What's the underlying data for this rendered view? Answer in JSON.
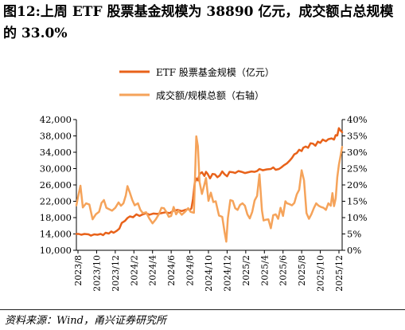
{
  "title": "图12:上周 ETF 股票基金规模为 38890 亿元，成交额占总规模的 33.0%",
  "source": "资料来源：Wind，甬兴证券研究所",
  "colors": {
    "primary": "#E8621A",
    "secondary": "#F5A35A",
    "axis": "#000000"
  },
  "chart_data": {
    "type": "line",
    "legend_position": "top-center",
    "grid": false,
    "left_axis": {
      "min": 10000,
      "max": 42000,
      "ticks": [
        "10,000",
        "14,000",
        "18,000",
        "22,000",
        "26,000",
        "30,000",
        "34,000",
        "38,000",
        "42,000"
      ]
    },
    "right_axis": {
      "min": 0,
      "max": 40,
      "unit": "%",
      "ticks": [
        "0%",
        "5%",
        "10%",
        "15%",
        "20%",
        "25%",
        "30%",
        "35%",
        "40%"
      ]
    },
    "x_ticks": [
      "2023/8",
      "2023/10",
      "2023/12",
      "2024/2",
      "2024/4",
      "2024/6",
      "2024/8",
      "2024/10",
      "2024/12",
      "2025/2",
      "2025/4",
      "2025/6",
      "2025/8",
      "2025/10",
      "2025/12"
    ],
    "series": [
      {
        "name": "ETF 股票基金规模（亿元）",
        "axis": "left",
        "color": "#E8621A",
        "width": 2.5,
        "points": [
          [
            0,
            14000
          ],
          [
            0.3,
            14000
          ],
          [
            0.6,
            13800
          ],
          [
            1,
            14000
          ],
          [
            1.5,
            13900
          ],
          [
            1.8,
            13600
          ],
          [
            2.2,
            13900
          ],
          [
            2.6,
            13800
          ],
          [
            3,
            14000
          ],
          [
            3.3,
            13700
          ],
          [
            3.6,
            14300
          ],
          [
            4,
            14100
          ],
          [
            4.3,
            14600
          ],
          [
            4.6,
            14300
          ],
          [
            5,
            14800
          ],
          [
            5.3,
            15300
          ],
          [
            5.6,
            16700
          ],
          [
            6,
            17200
          ],
          [
            6.3,
            17900
          ],
          [
            6.6,
            18300
          ],
          [
            7,
            18100
          ],
          [
            7.4,
            18800
          ],
          [
            7.8,
            18400
          ],
          [
            8.2,
            18800
          ],
          [
            8.6,
            19100
          ],
          [
            9,
            18700
          ],
          [
            9.5,
            19000
          ],
          [
            10,
            18900
          ],
          [
            10.5,
            19100
          ],
          [
            11,
            19300
          ],
          [
            11.5,
            19100
          ],
          [
            12,
            19700
          ],
          [
            12.5,
            19900
          ],
          [
            13,
            19600
          ],
          [
            13.6,
            20000
          ],
          [
            13.8,
            20100
          ],
          [
            14,
            19800
          ],
          [
            14.2,
            20300
          ],
          [
            14.4,
            22600
          ],
          [
            14.6,
            26400
          ],
          [
            14.8,
            27600
          ],
          [
            15,
            27100
          ],
          [
            15.2,
            28700
          ],
          [
            15.5,
            29100
          ],
          [
            15.8,
            28200
          ],
          [
            16,
            29200
          ],
          [
            16.2,
            28700
          ],
          [
            16.5,
            27600
          ],
          [
            16.8,
            28700
          ],
          [
            17.1,
            28600
          ],
          [
            17.4,
            27900
          ],
          [
            17.7,
            28300
          ],
          [
            18,
            29300
          ],
          [
            18.3,
            28600
          ],
          [
            18.6,
            28100
          ],
          [
            18.9,
            29200
          ],
          [
            19.3,
            29100
          ],
          [
            19.6,
            28900
          ],
          [
            20,
            29400
          ],
          [
            20.4,
            29200
          ],
          [
            20.8,
            28900
          ],
          [
            21.2,
            29100
          ],
          [
            21.6,
            29300
          ],
          [
            22,
            29200
          ],
          [
            22.3,
            29400
          ],
          [
            22.6,
            29900
          ],
          [
            23,
            29600
          ],
          [
            23.5,
            29800
          ],
          [
            24,
            29900
          ],
          [
            24.3,
            30300
          ],
          [
            24.6,
            29700
          ],
          [
            25,
            29900
          ],
          [
            25.3,
            30300
          ],
          [
            25.6,
            30800
          ],
          [
            26,
            31300
          ],
          [
            26.3,
            31900
          ],
          [
            26.6,
            32600
          ],
          [
            26.9,
            33500
          ],
          [
            27.2,
            33800
          ],
          [
            27.5,
            34600
          ],
          [
            27.8,
            34300
          ],
          [
            28,
            35100
          ],
          [
            28.3,
            35400
          ],
          [
            28.6,
            35100
          ],
          [
            28.9,
            36200
          ],
          [
            29.2,
            36100
          ],
          [
            29.5,
            35600
          ],
          [
            29.8,
            36600
          ],
          [
            30.1,
            36300
          ],
          [
            30.4,
            37100
          ],
          [
            30.8,
            36700
          ],
          [
            31.1,
            37200
          ],
          [
            31.5,
            37400
          ],
          [
            31.8,
            37100
          ],
          [
            32,
            38200
          ],
          [
            32.2,
            38100
          ],
          [
            32.4,
            39900
          ],
          [
            32.6,
            39300
          ],
          [
            32.8,
            38900
          ]
        ]
      },
      {
        "name": "成交额/规模总额（右轴）",
        "axis": "right",
        "color": "#F5A35A",
        "width": 2.5,
        "points": [
          [
            0,
            21000
          ],
          [
            0.2,
            23000
          ],
          [
            0.5,
            25800
          ],
          [
            0.8,
            20500
          ],
          [
            1.2,
            21500
          ],
          [
            1.6,
            21200
          ],
          [
            2,
            17600
          ],
          [
            2.4,
            18800
          ],
          [
            2.8,
            19400
          ],
          [
            3.1,
            21600
          ],
          [
            3.4,
            22300
          ],
          [
            3.7,
            20400
          ],
          [
            4,
            20100
          ],
          [
            4.4,
            19700
          ],
          [
            4.8,
            20400
          ],
          [
            5.2,
            21700
          ],
          [
            5.5,
            20900
          ],
          [
            5.8,
            21500
          ],
          [
            6.1,
            23400
          ],
          [
            6.3,
            25700
          ],
          [
            6.6,
            24100
          ],
          [
            6.9,
            22300
          ],
          [
            7.2,
            21000
          ],
          [
            7.6,
            21500
          ],
          [
            7.9,
            19900
          ],
          [
            8.2,
            19100
          ],
          [
            8.6,
            19300
          ],
          [
            9,
            17800
          ],
          [
            9.4,
            16600
          ],
          [
            9.8,
            17600
          ],
          [
            10.2,
            18900
          ],
          [
            10.5,
            20400
          ],
          [
            10.8,
            20300
          ],
          [
            11.1,
            19400
          ],
          [
            11.4,
            18200
          ],
          [
            11.7,
            18400
          ],
          [
            12,
            20600
          ],
          [
            12.3,
            18800
          ],
          [
            12.6,
            19700
          ],
          [
            13,
            18700
          ],
          [
            13.4,
            19400
          ],
          [
            13.8,
            20300
          ],
          [
            14.1,
            19400
          ],
          [
            14.5,
            19200
          ],
          [
            14.8,
            37900
          ],
          [
            15,
            35500
          ],
          [
            15.2,
            26700
          ],
          [
            15.5,
            23800
          ],
          [
            15.8,
            26100
          ],
          [
            16,
            27700
          ],
          [
            16.3,
            22100
          ],
          [
            16.6,
            24100
          ],
          [
            16.9,
            21800
          ],
          [
            17.2,
            22000
          ],
          [
            17.6,
            18500
          ],
          [
            18,
            18200
          ],
          [
            18.3,
            14400
          ],
          [
            18.5,
            12100
          ],
          [
            18.7,
            17900
          ],
          [
            19,
            22300
          ],
          [
            19.3,
            22100
          ],
          [
            19.6,
            20300
          ],
          [
            19.9,
            19900
          ],
          [
            20.2,
            21100
          ],
          [
            20.5,
            21500
          ],
          [
            20.8,
            20900
          ],
          [
            21.1,
            18800
          ],
          [
            21.4,
            17800
          ],
          [
            21.7,
            19400
          ],
          [
            22,
            22200
          ],
          [
            22.3,
            23300
          ],
          [
            22.6,
            28600
          ],
          [
            22.9,
            19800
          ],
          [
            23.1,
            17300
          ],
          [
            23.4,
            17500
          ],
          [
            23.7,
            17600
          ],
          [
            24,
            15400
          ],
          [
            24.3,
            18600
          ],
          [
            24.6,
            18800
          ],
          [
            24.9,
            17700
          ],
          [
            25.2,
            20400
          ],
          [
            25.5,
            18400
          ],
          [
            25.8,
            22000
          ],
          [
            26,
            21500
          ],
          [
            26.3,
            21300
          ],
          [
            26.6,
            21000
          ],
          [
            26.9,
            21600
          ],
          [
            27.2,
            23700
          ],
          [
            27.5,
            24800
          ],
          [
            27.8,
            29600
          ],
          [
            28.1,
            27100
          ],
          [
            28.4,
            19100
          ],
          [
            28.7,
            17700
          ],
          [
            29,
            18800
          ],
          [
            29.3,
            20300
          ],
          [
            29.6,
            21500
          ],
          [
            29.9,
            20900
          ],
          [
            30.2,
            20600
          ],
          [
            30.5,
            20400
          ],
          [
            30.8,
            19900
          ],
          [
            31.1,
            21500
          ],
          [
            31.4,
            20900
          ],
          [
            31.6,
            24000
          ],
          [
            31.8,
            20800
          ],
          [
            32.0,
            22700
          ],
          [
            32.2,
            27900
          ],
          [
            32.4,
            30900
          ],
          [
            32.6,
            33100
          ],
          [
            32.8,
            35300
          ]
        ]
      }
    ]
  }
}
